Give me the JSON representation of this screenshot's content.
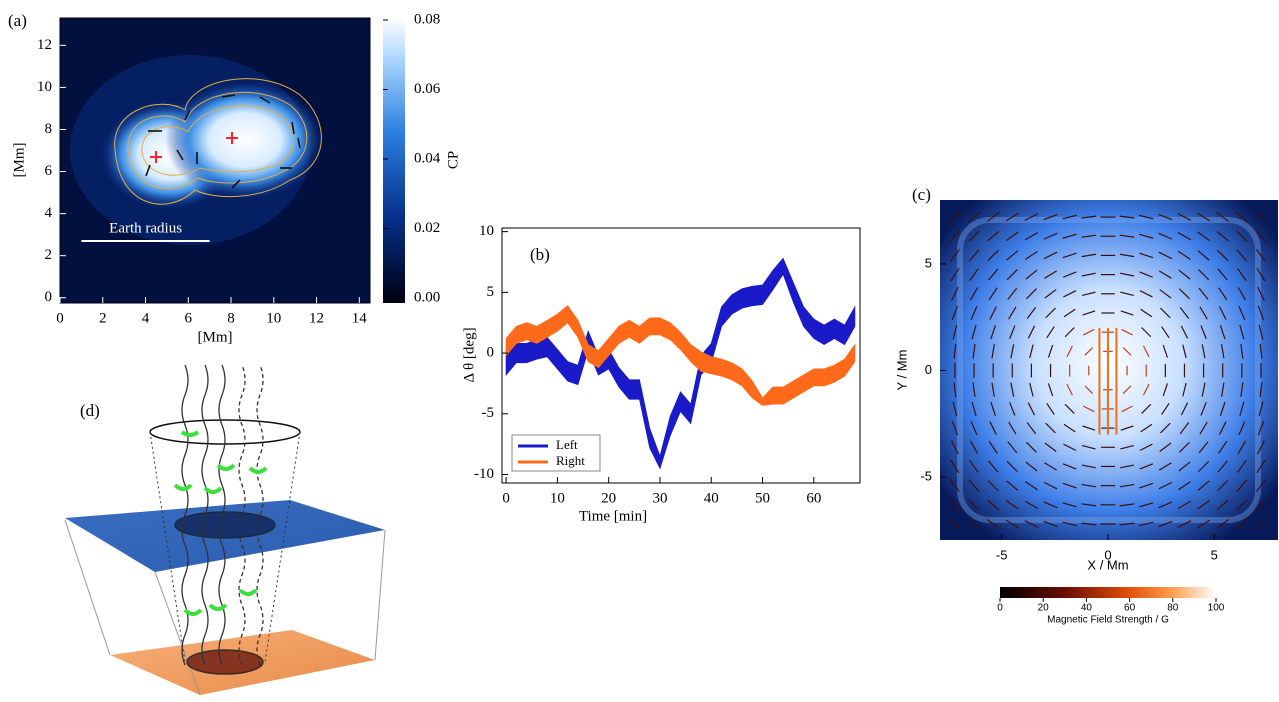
{
  "chart_data": [
    {
      "type": "image",
      "panel_label": "(a)",
      "xlabel": "[Mm]",
      "ylabel": "[Mm]",
      "xlim": [
        0,
        14.5
      ],
      "ylim": [
        -0.25,
        13.3
      ],
      "xticks": [
        0,
        2,
        4,
        6,
        8,
        10,
        12,
        14
      ],
      "yticks": [
        0,
        2,
        4,
        6,
        8,
        10,
        12
      ],
      "annotation": "Earth radius",
      "colorbar": {
        "label": "CP",
        "lim": [
          0,
          0.08
        ],
        "ticks": [
          {
            "value": 0,
            "label": "0.00"
          },
          0.02,
          0.04,
          0.06,
          0.08
        ]
      }
    },
    {
      "type": "line",
      "panel_label": "(b)",
      "xlabel": "Time [min]",
      "ylabel": "Δ θ [deg]",
      "xlim": [
        -0.8,
        69
      ],
      "ylim": [
        -10.7,
        10.3
      ],
      "xticks": [
        0,
        10,
        20,
        30,
        40,
        50,
        60
      ],
      "yticks": [
        -10,
        -5,
        0,
        5,
        10
      ],
      "legend": "lower left",
      "x": [
        0,
        2,
        4,
        6,
        8,
        10,
        12,
        14,
        16,
        18,
        20,
        22,
        24,
        26,
        28,
        30,
        32,
        34,
        36,
        38,
        40,
        42,
        44,
        46,
        48,
        50,
        52,
        54,
        56,
        58,
        60,
        62,
        64,
        66,
        68
      ],
      "series": [
        {
          "name": "Left",
          "color": "#1a1ac8",
          "lower": [
            -1.8,
            -0.8,
            -0.8,
            -0.5,
            -0.3,
            -1.3,
            -2.3,
            -2.6,
            0.2,
            -1.8,
            -1.3,
            -2.8,
            -3.8,
            -3.8,
            -7.8,
            -9.5,
            -6.8,
            -4.8,
            -5.8,
            -1.8,
            -0.8,
            2.2,
            3.2,
            3.7,
            3.9,
            4,
            5.2,
            6.5,
            4.2,
            2.2,
            1.2,
            0.7,
            1.2,
            0.7,
            2.2
          ],
          "upper": [
            0.2,
            0.8,
            0.8,
            1.1,
            1.3,
            0.3,
            -0.7,
            -1,
            1.8,
            -0.2,
            0.3,
            -1.2,
            -2.2,
            -2.2,
            -6.2,
            -8.5,
            -5.2,
            -3.2,
            -4.2,
            -0.2,
            0.8,
            3.8,
            4.8,
            5.3,
            5.5,
            5.6,
            6.8,
            7.8,
            5.8,
            3.8,
            2.8,
            2.3,
            2.8,
            2.3,
            3.8
          ]
        },
        {
          "name": "Right",
          "color": "#ff6a1a",
          "lower": [
            -0.2,
            0.8,
            1.1,
            0.8,
            1.3,
            1.8,
            2.5,
            1.3,
            -0.7,
            -1.2,
            -0.2,
            0.8,
            1.3,
            0.8,
            1.5,
            1.5,
            1.1,
            0.3,
            -0.7,
            -1.5,
            -1.7,
            -1.9,
            -2.2,
            -2.7,
            -3.7,
            -4.3,
            -4.2,
            -4.2,
            -3.7,
            -3.2,
            -2.7,
            -2.7,
            -2.4,
            -1.9,
            -0.7
          ],
          "upper": [
            1.2,
            2.2,
            2.5,
            2.2,
            2.7,
            3.2,
            3.9,
            2.7,
            0.7,
            0.2,
            1.2,
            2.2,
            2.7,
            2.2,
            2.9,
            2.9,
            2.5,
            1.7,
            0.7,
            0.1,
            -0.3,
            -0.5,
            -0.8,
            -1.3,
            -2.3,
            -3.7,
            -2.8,
            -2.8,
            -2.3,
            -1.8,
            -1.3,
            -1.3,
            -1,
            -0.5,
            0.7
          ]
        }
      ]
    },
    {
      "type": "vector_field",
      "panel_label": "(c)",
      "xlabel": "X / Mm",
      "ylabel": "Y / Mm",
      "xlim": [
        -7.9,
        8
      ],
      "ylim": [
        -7.95,
        8
      ],
      "xticks": [
        -5,
        0,
        5
      ],
      "yticks": [
        -5,
        0,
        5
      ],
      "colorbar": {
        "label": "Magnetic Field Strength / G",
        "lim": [
          0,
          100
        ],
        "ticks": [
          0,
          20,
          40,
          60,
          80,
          100
        ]
      }
    }
  ],
  "diagram": {
    "panel_label": "(d)"
  }
}
